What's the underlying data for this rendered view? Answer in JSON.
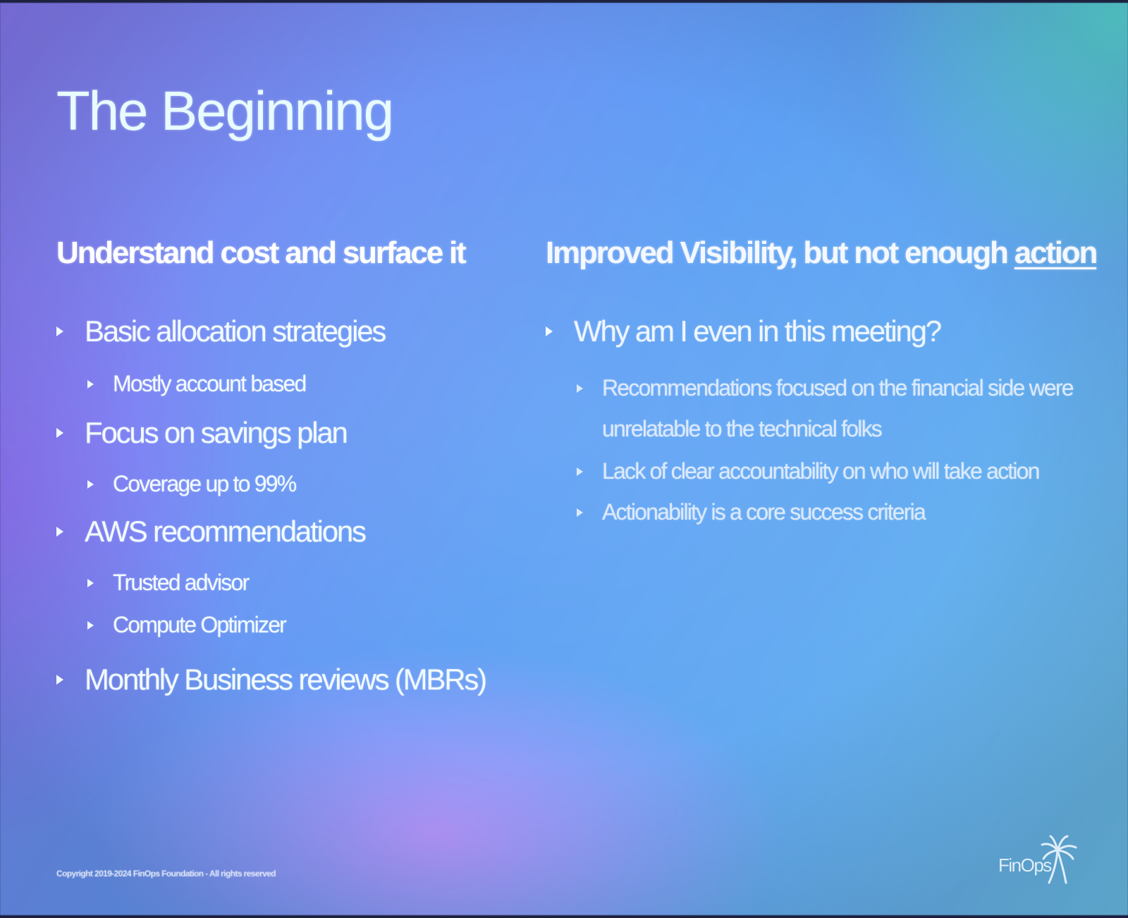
{
  "slide": {
    "title": "The Beginning",
    "left_column": {
      "heading": "Understand cost  and surface  it",
      "items": [
        {
          "text": "Basic allocation strategies",
          "level": 1
        },
        {
          "text": "Mostly account based",
          "level": 2
        },
        {
          "text": "Focus on savings plan",
          "level": 1
        },
        {
          "text": "Coverage up to 99%",
          "level": 2
        },
        {
          "text": "AWS recommendations",
          "level": 1
        },
        {
          "text": "Trusted advisor",
          "level": 2
        },
        {
          "text": "Compute Optimizer",
          "level": 2
        },
        {
          "text": "Monthly Business reviews (MBRs)",
          "level": 1
        }
      ]
    },
    "right_column": {
      "heading_prefix": "Improved Visibility, but not enough ",
      "heading_emphasis": "action",
      "items": [
        {
          "text": "Why am I even in this meeting?",
          "level": 1
        },
        {
          "text": "Recommendations focused on the financial side were",
          "level": 2
        },
        {
          "text": "unrelatable to the technical folks",
          "level": 2,
          "continuation": true
        },
        {
          "text": "Lack of clear accountability on who will take action",
          "level": 2
        },
        {
          "text": "Actionability is a core success criteria",
          "level": 2
        }
      ]
    },
    "footer": {
      "copyright": "Copyright 2019-2024 FinOps Foundation - All rights reserved",
      "logo_text": "FinOps",
      "logo_icon": "palm-tree-icon"
    }
  },
  "colors": {
    "text": "#f2fbff",
    "gradient_left": "#8a7cf2",
    "gradient_mid": "#5ea0f4",
    "gradient_right": "#6cc4e8"
  }
}
